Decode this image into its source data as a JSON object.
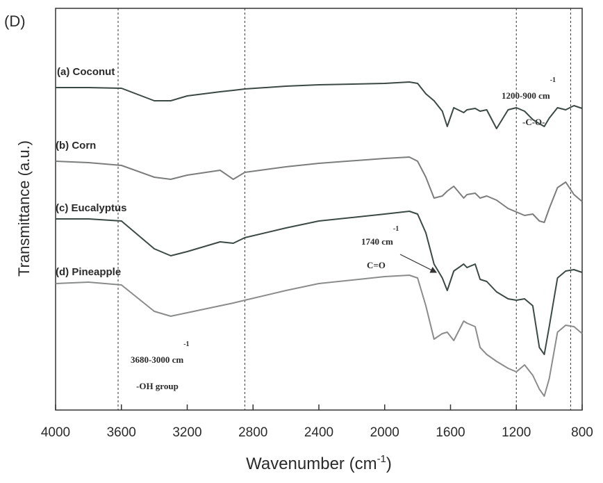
{
  "chart_data": {
    "type": "line",
    "panel_label": "(D)",
    "x_label": {
      "before": "Wavenumber (cm",
      "sup": "-1",
      "after": ")"
    },
    "y_label": "Transmittance (a.u.)",
    "xlim": [
      4000,
      800
    ],
    "ylim": [
      0,
      578
    ],
    "xticks": [
      4000,
      3600,
      3200,
      2800,
      2400,
      2000,
      1600,
      1200,
      800
    ],
    "reference_lines": [
      3620,
      2850,
      1200,
      870
    ],
    "x": [
      4000,
      3800,
      3600,
      3400,
      3300,
      3200,
      3000,
      2920,
      2850,
      2600,
      2400,
      2000,
      1850,
      1800,
      1750,
      1700,
      1650,
      1620,
      1580,
      1520,
      1500,
      1450,
      1420,
      1380,
      1320,
      1250,
      1200,
      1150,
      1100,
      1060,
      1030,
      1000,
      950,
      900,
      850,
      800
    ],
    "series": [
      {
        "name": "(a) Coconut",
        "color": "#3b4844",
        "values": [
          464,
          464,
          463,
          445,
          445,
          452,
          458,
          460,
          462,
          466,
          468,
          470,
          472,
          470,
          455,
          445,
          430,
          408,
          435,
          428,
          432,
          434,
          430,
          432,
          405,
          432,
          435,
          430,
          418,
          412,
          408,
          420,
          435,
          432,
          438,
          434
        ]
      },
      {
        "name": "(b) Corn",
        "color": "#7a7d7c",
        "values": [
          358,
          356,
          352,
          335,
          332,
          338,
          345,
          332,
          342,
          350,
          355,
          362,
          364,
          358,
          335,
          305,
          308,
          315,
          322,
          305,
          310,
          312,
          305,
          308,
          302,
          290,
          285,
          280,
          282,
          272,
          270,
          290,
          320,
          328,
          310,
          300
        ]
      },
      {
        "name": "(c) Eucalyptus",
        "color": "#3b4844",
        "values": [
          275,
          275,
          272,
          232,
          222,
          228,
          242,
          240,
          248,
          262,
          272,
          282,
          286,
          282,
          255,
          210,
          190,
          172,
          200,
          210,
          205,
          210,
          188,
          185,
          170,
          160,
          158,
          160,
          150,
          90,
          80,
          120,
          190,
          200,
          202,
          198
        ]
      },
      {
        "name": "(d) Pineapple",
        "color": "#8a8c8b",
        "values": [
          182,
          184,
          180,
          142,
          135,
          140,
          150,
          154,
          158,
          172,
          182,
          192,
          194,
          190,
          150,
          102,
          110,
          112,
          100,
          128,
          125,
          120,
          90,
          80,
          70,
          60,
          55,
          65,
          50,
          30,
          20,
          45,
          112,
          122,
          120,
          110
        ]
      }
    ],
    "annotations": [
      {
        "text": "1200-900 cm",
        "sup": "-1"
      },
      {
        "text": "-C-O-"
      },
      {
        "text": "1740 cm",
        "sup": "-1"
      },
      {
        "text": "C=O"
      },
      {
        "text": "3680-3000 cm",
        "sup": "-1"
      },
      {
        "text": "-OH group"
      }
    ]
  }
}
